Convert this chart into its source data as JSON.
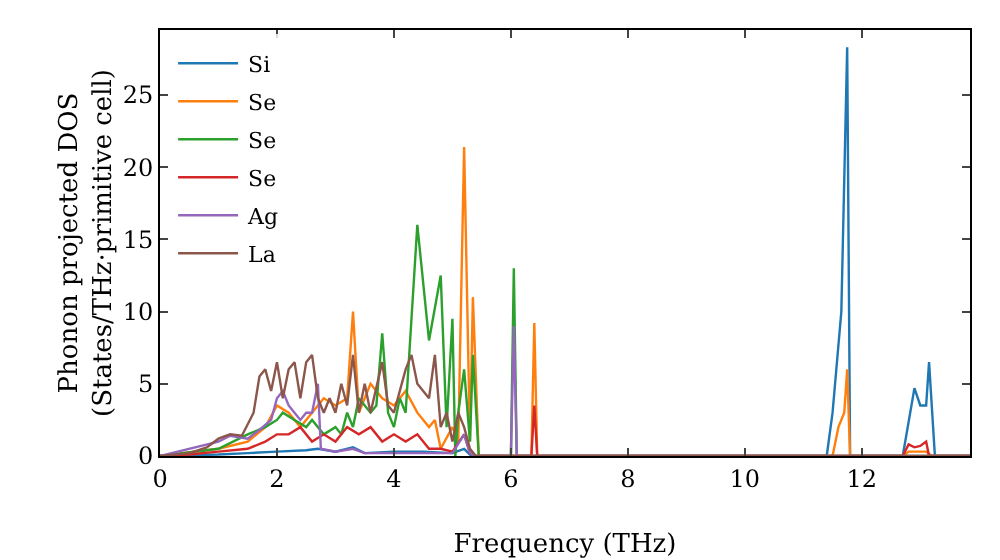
{
  "chart_data": {
    "type": "line",
    "xlabel": "Frequency (THz)",
    "ylabel": "Phonon projected DOS\n(States/THz·primitive cell)",
    "xlim": [
      0,
      13.85
    ],
    "ylim": [
      0,
      29.5
    ],
    "xticks": [
      0,
      2,
      4,
      6,
      8,
      10,
      12
    ],
    "yticks": [
      0,
      5,
      10,
      15,
      20,
      25
    ],
    "grid": false,
    "legend": "top left",
    "marker": "none",
    "line_style": "solid",
    "series": [
      {
        "name": "Si",
        "color": "#1f77b4",
        "x": [
          0,
          1,
          1.5,
          2,
          2.5,
          2.7,
          3,
          3.3,
          3.5,
          4,
          4.5,
          5,
          5.2,
          5.3,
          5.4,
          11.4,
          11.5,
          11.65,
          11.75,
          11.8,
          12.7,
          12.9,
          13,
          13.1,
          13.15,
          13.25,
          13.85
        ],
        "values": [
          0,
          0.1,
          0.2,
          0.3,
          0.4,
          0.5,
          0.3,
          0.6,
          0.2,
          0.3,
          0.3,
          0.2,
          0.5,
          0.1,
          0,
          0,
          3,
          10,
          28.3,
          0,
          0,
          4.7,
          3.5,
          3.5,
          6.5,
          0,
          0
        ]
      },
      {
        "name": "Se",
        "color": "#ff7f0e",
        "x": [
          0,
          1,
          1.5,
          1.8,
          2,
          2.2,
          2.4,
          2.6,
          2.8,
          3,
          3.2,
          3.3,
          3.4,
          3.6,
          3.8,
          4,
          4.2,
          4.4,
          4.6,
          4.7,
          4.8,
          5,
          5.1,
          5.2,
          5.3,
          5.35,
          5.45,
          6.35,
          6.4,
          6.45,
          11.5,
          11.6,
          11.7,
          11.75,
          11.8,
          12.7,
          12.8,
          13.1,
          13.2,
          13.85
        ],
        "values": [
          0,
          0.5,
          1,
          2,
          3.5,
          3,
          2,
          3,
          4,
          3.5,
          4,
          10,
          3,
          5,
          4,
          3.5,
          4.5,
          3,
          2,
          2.5,
          0.5,
          2,
          1,
          21.4,
          1,
          11,
          0,
          0,
          9.2,
          0,
          0,
          2,
          3,
          6,
          0,
          0,
          0.3,
          0.3,
          0,
          0
        ]
      },
      {
        "name": "Se",
        "color": "#2ca02c",
        "x": [
          0,
          1,
          1.5,
          1.8,
          2,
          2.1,
          2.3,
          2.5,
          2.6,
          2.8,
          3,
          3.1,
          3.2,
          3.3,
          3.4,
          3.6,
          3.7,
          3.8,
          3.9,
          4,
          4.1,
          4.2,
          4.4,
          4.6,
          4.8,
          4.9,
          5,
          5.05,
          5.1,
          5.2,
          5.3,
          5.35,
          5.45,
          6,
          6.05,
          6.1,
          13.85
        ],
        "values": [
          0,
          0.5,
          1.5,
          2,
          2.5,
          3,
          2.5,
          2,
          2.5,
          1.5,
          2,
          1.5,
          3,
          2,
          4,
          3,
          3.5,
          8.5,
          3,
          2,
          4,
          3,
          16,
          8,
          12.5,
          2,
          9.5,
          0,
          3,
          6,
          1,
          7,
          0,
          0,
          13,
          0,
          0
        ]
      },
      {
        "name": "Se",
        "color": "#d62728",
        "x": [
          0,
          0.5,
          1,
          1.5,
          1.8,
          2,
          2.2,
          2.4,
          2.6,
          2.8,
          3,
          3.2,
          3.4,
          3.6,
          3.8,
          4,
          4.2,
          4.4,
          4.6,
          4.8,
          5,
          5.2,
          5.3,
          5.4,
          6.35,
          6.4,
          6.45,
          12.7,
          12.8,
          12.9,
          13,
          13.1,
          13.15,
          13.85
        ],
        "values": [
          0,
          0.1,
          0.3,
          0.5,
          1,
          1.5,
          1.5,
          2,
          1,
          1.5,
          1,
          2,
          1.5,
          2,
          1,
          1.5,
          1,
          1.5,
          0.5,
          0.5,
          0.3,
          1.5,
          0.2,
          0,
          0,
          3.5,
          0,
          0,
          0.8,
          0.6,
          0.7,
          1,
          0,
          0
        ]
      },
      {
        "name": "Ag",
        "color": "#9467bd",
        "x": [
          0,
          1,
          1.2,
          1.5,
          1.7,
          1.9,
          2,
          2.1,
          2.2,
          2.3,
          2.4,
          2.5,
          2.6,
          2.7,
          2.75,
          3,
          3.3,
          3.5,
          4,
          5,
          5.2,
          5.3,
          5.4,
          6,
          6.05,
          6.1,
          13.85
        ],
        "values": [
          0,
          1,
          1.4,
          1.2,
          1.8,
          2.5,
          4,
          4.5,
          3.5,
          3,
          2.5,
          3,
          3,
          5,
          0.5,
          0.3,
          0.5,
          0.2,
          0.2,
          0.2,
          1.5,
          0.2,
          0,
          0,
          9,
          0,
          0
        ]
      },
      {
        "name": "La",
        "color": "#8c564b",
        "x": [
          0,
          0.5,
          0.8,
          1,
          1.2,
          1.4,
          1.6,
          1.7,
          1.8,
          1.9,
          2,
          2.1,
          2.2,
          2.3,
          2.4,
          2.5,
          2.6,
          2.7,
          2.8,
          2.9,
          3,
          3.1,
          3.2,
          3.3,
          3.4,
          3.5,
          3.6,
          3.8,
          3.9,
          4,
          4.2,
          4.3,
          4.4,
          4.6,
          4.7,
          4.8,
          4.9,
          5,
          5.1,
          5.2,
          5.3,
          5.4,
          13.85
        ],
        "values": [
          0,
          0.2,
          0.6,
          1.2,
          1.5,
          1.4,
          3,
          5.5,
          6,
          4.5,
          6.5,
          4,
          6,
          6.5,
          4,
          6.5,
          7,
          4,
          3,
          4,
          3,
          5,
          3.5,
          7,
          3,
          5,
          3,
          6.5,
          3.5,
          3,
          6,
          7,
          5,
          4,
          7,
          2,
          3,
          1,
          3,
          2,
          0.5,
          0,
          0
        ]
      }
    ]
  }
}
